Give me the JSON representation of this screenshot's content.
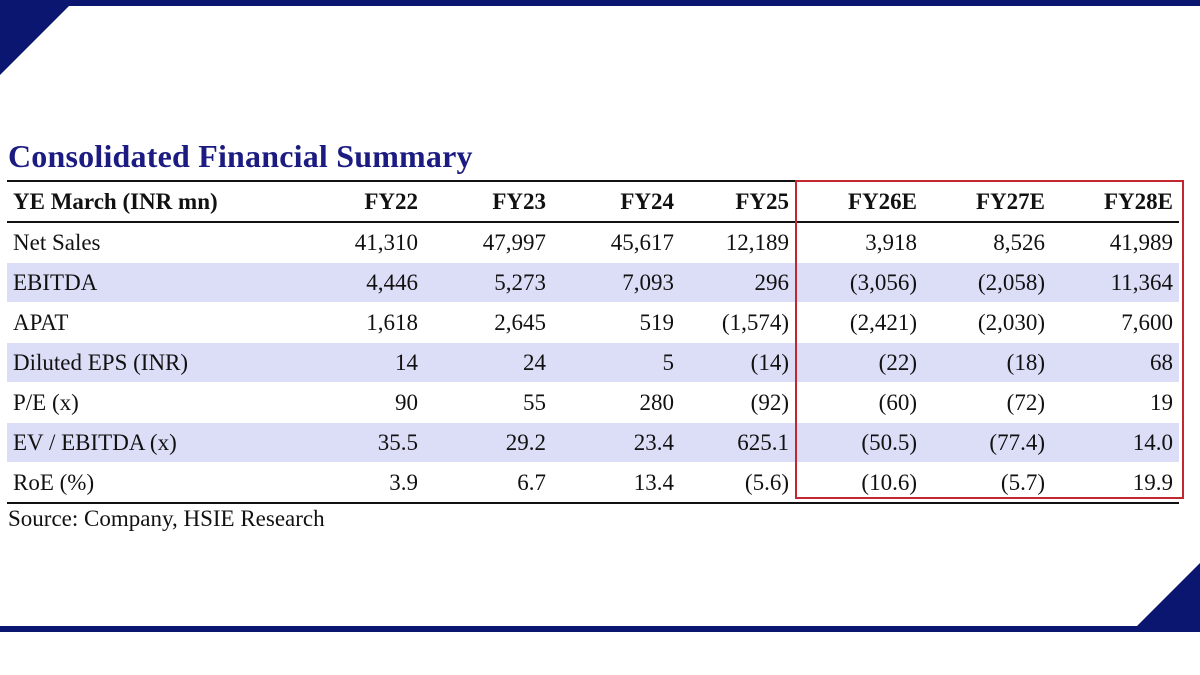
{
  "title": "Consolidated Financial Summary",
  "header": {
    "label": "YE March (INR mn)",
    "years": [
      "FY22",
      "FY23",
      "FY24",
      "FY25",
      "FY26E",
      "FY27E",
      "FY28E"
    ]
  },
  "rows": [
    {
      "label": "Net Sales",
      "values": [
        "41,310",
        "47,997",
        "45,617",
        "12,189",
        "3,918",
        "8,526",
        "41,989"
      ]
    },
    {
      "label": "EBITDA",
      "values": [
        "4,446",
        "5,273",
        "7,093",
        "296",
        "(3,056)",
        "(2,058)",
        "11,364"
      ]
    },
    {
      "label": "APAT",
      "values": [
        "1,618",
        "2,645",
        "519",
        "(1,574)",
        "(2,421)",
        "(2,030)",
        "7,600"
      ]
    },
    {
      "label": "Diluted EPS (INR)",
      "values": [
        "14",
        "24",
        "5",
        "(14)",
        "(22)",
        "(18)",
        "68"
      ]
    },
    {
      "label": "P/E (x)",
      "values": [
        "90",
        "55",
        "280",
        "(92)",
        "(60)",
        "(72)",
        "19"
      ]
    },
    {
      "label": "EV / EBITDA (x)",
      "values": [
        "35.5",
        "29.2",
        "23.4",
        "625.1",
        "(50.5)",
        "(77.4)",
        "14.0"
      ]
    },
    {
      "label": "RoE (%)",
      "values": [
        "3.9",
        "6.7",
        "13.4",
        "(5.6)",
        "(10.6)",
        "(5.7)",
        "19.9"
      ]
    }
  ],
  "source": "Source: Company, HSIE Research",
  "colors": {
    "brand_navy": "#0b1670",
    "title": "#1b1b82",
    "row_shade": "#dcddf6",
    "estimate_box": "#c2262e"
  }
}
